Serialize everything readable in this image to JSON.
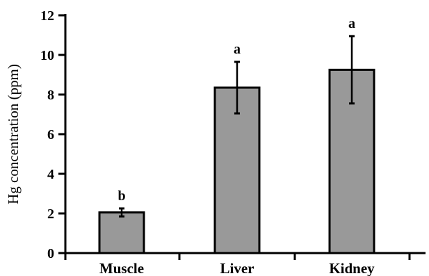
{
  "chart_data": {
    "type": "bar",
    "title": "",
    "xlabel": "",
    "ylabel": "Hg concentration (ppm)",
    "ylim": [
      0,
      12
    ],
    "yticks": [
      0,
      2,
      4,
      6,
      8,
      10,
      12
    ],
    "grid": false,
    "categories": [
      "Muscle",
      "Liver",
      "Kidney"
    ],
    "values": [
      2.05,
      8.35,
      9.25
    ],
    "error": [
      0.2,
      1.3,
      1.7
    ],
    "significance": [
      "b",
      "a",
      "a"
    ],
    "colors": {
      "bar_fill": "#999999",
      "bar_stroke": "#000000",
      "axis": "#000000"
    }
  }
}
